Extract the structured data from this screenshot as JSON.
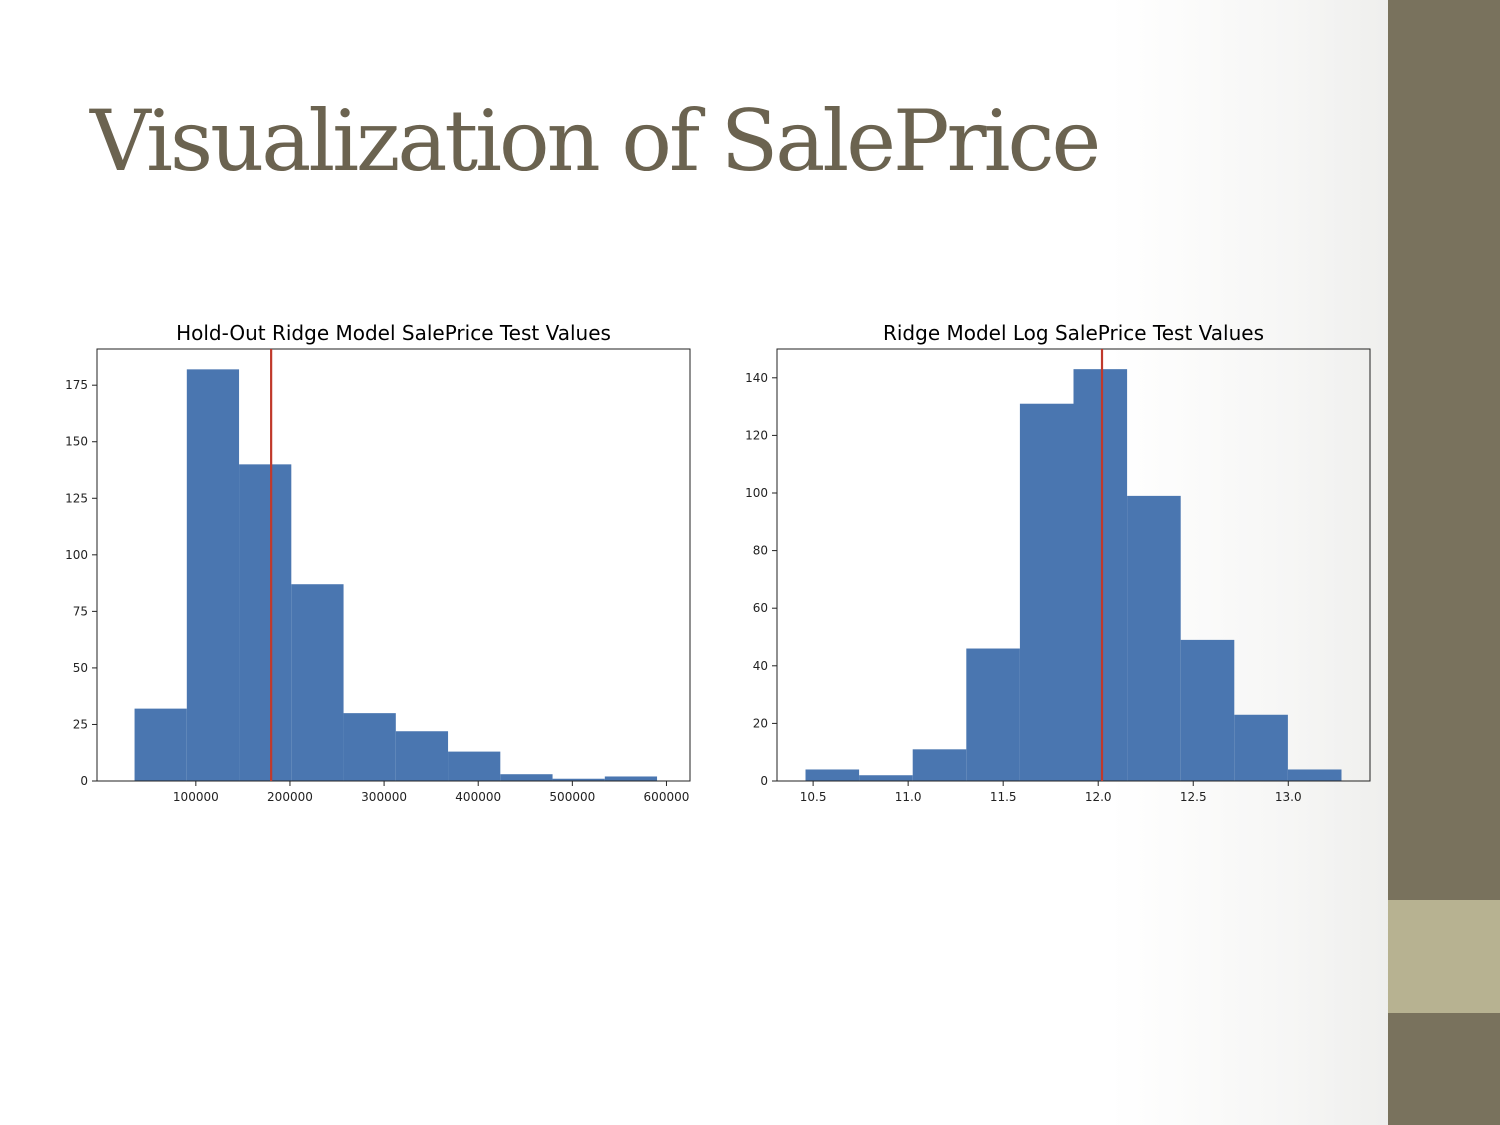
{
  "slide": {
    "title": "Visualization of SalePrice",
    "colors": {
      "title": "#6b6350",
      "band_dark": "#79725d",
      "band_light": "#b7b291"
    }
  },
  "chart_data": [
    {
      "type": "bar",
      "title": "Hold-Out Ridge Model SalePrice Test Values",
      "xlabel": "",
      "ylabel": "",
      "bin_edges": [
        34900,
        90410,
        145920,
        201430,
        256940,
        312450,
        367960,
        423470,
        478980,
        534490,
        590000
      ],
      "values": [
        32,
        182,
        140,
        87,
        30,
        22,
        13,
        3,
        1,
        2
      ],
      "xlim": [
        -5000,
        625000
      ],
      "ylim": [
        0,
        191
      ],
      "xticks": [
        100000,
        200000,
        300000,
        400000,
        500000,
        600000
      ],
      "xtick_labels": [
        "100000",
        "200000",
        "300000",
        "400000",
        "500000",
        "600000"
      ],
      "yticks": [
        0,
        25,
        50,
        75,
        100,
        125,
        150,
        175
      ],
      "ytick_labels": [
        "0",
        "25",
        "50",
        "75",
        "100",
        "125",
        "150",
        "175"
      ],
      "vline": 180000,
      "bar_color": "#4a76b0",
      "line_color": "#c0392b"
    },
    {
      "type": "bar",
      "title": "Ridge Model Log SalePrice Test Values",
      "xlabel": "",
      "ylabel": "",
      "bin_edges": [
        10.46,
        10.742,
        11.024,
        11.306,
        11.588,
        11.87,
        12.152,
        12.434,
        12.716,
        12.998,
        13.28
      ],
      "values": [
        4,
        2,
        11,
        46,
        131,
        143,
        99,
        49,
        23,
        4
      ],
      "xlim": [
        10.31,
        13.43
      ],
      "ylim": [
        0,
        150
      ],
      "xticks": [
        10.5,
        11.0,
        11.5,
        12.0,
        12.5,
        13.0
      ],
      "xtick_labels": [
        "10.5",
        "11.0",
        "11.5",
        "12.0",
        "12.5",
        "13.0"
      ],
      "yticks": [
        0,
        20,
        40,
        60,
        80,
        100,
        120,
        140
      ],
      "ytick_labels": [
        "0",
        "20",
        "40",
        "60",
        "80",
        "100",
        "120",
        "140"
      ],
      "vline": 12.02,
      "bar_color": "#4a76b0",
      "line_color": "#c0392b"
    }
  ]
}
